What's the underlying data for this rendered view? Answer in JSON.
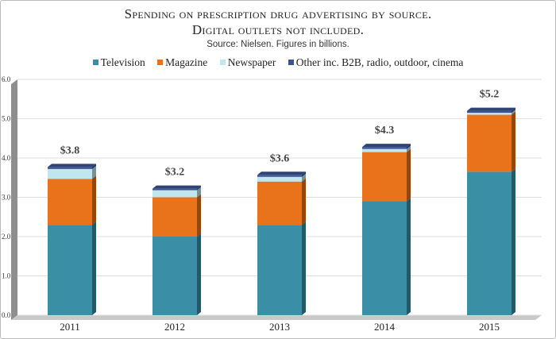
{
  "title_line1": "Spending on prescription drug advertising by source.",
  "title_line2": "Digital outlets not included.",
  "subtitle": "Source: Nielsen. Figures in billions.",
  "chart_data": {
    "type": "bar",
    "stacked": true,
    "categories": [
      "2011",
      "2012",
      "2013",
      "2014",
      "2015"
    ],
    "series": [
      {
        "name": "Television",
        "color": "#3a8ea5",
        "values": [
          2.3,
          2.0,
          2.3,
          2.9,
          3.65
        ]
      },
      {
        "name": "Magazine",
        "color": "#e9731b",
        "values": [
          1.17,
          1.0,
          1.1,
          1.25,
          1.45
        ]
      },
      {
        "name": "Newspaper",
        "color": "#c2e6ee",
        "values": [
          0.25,
          0.18,
          0.12,
          0.08,
          0.05
        ]
      },
      {
        "name": "Other inc. B2B, radio, outdoor, cinema",
        "color": "#3b5491",
        "values": [
          0.05,
          0.04,
          0.05,
          0.05,
          0.05
        ]
      }
    ],
    "totals": [
      "$3.8",
      "$3.2",
      "$3.6",
      "$4.3",
      "$5.2"
    ],
    "ylim": [
      0,
      6
    ],
    "yticks": [
      "0.0",
      "1.0",
      "2.0",
      "3.0",
      "4.0",
      "5.0",
      "6.0"
    ],
    "grid": true,
    "legend_position": "top"
  }
}
